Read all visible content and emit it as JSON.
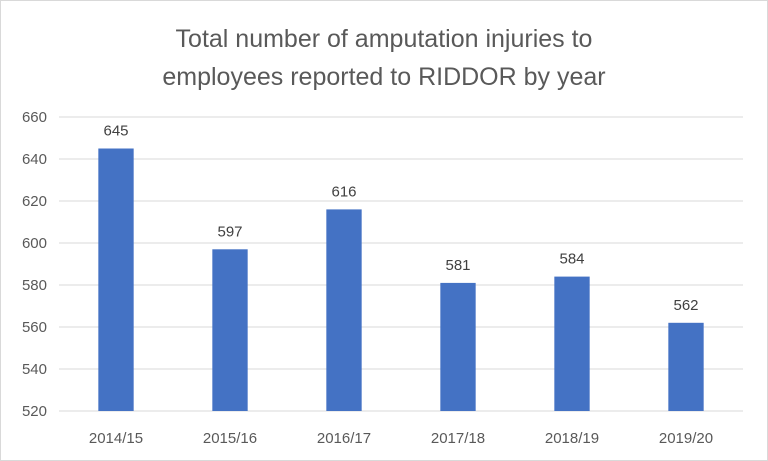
{
  "chart_data": {
    "type": "bar",
    "title_lines": [
      "Total number of amputation injuries to",
      "employees reported to RIDDOR by year"
    ],
    "categories": [
      "2014/15",
      "2015/16",
      "2016/17",
      "2017/18",
      "2018/19",
      "2019/20"
    ],
    "values": [
      645,
      597,
      616,
      581,
      584,
      562
    ],
    "data_labels": [
      "645",
      "597",
      "616",
      "581",
      "584",
      "562"
    ],
    "y_ticks": [
      520,
      540,
      560,
      580,
      600,
      620,
      640,
      660
    ],
    "ylim": [
      520,
      660
    ],
    "xlabel": "",
    "ylabel": "",
    "grid": true,
    "legend": "none",
    "bar_color": "#4472C4"
  }
}
